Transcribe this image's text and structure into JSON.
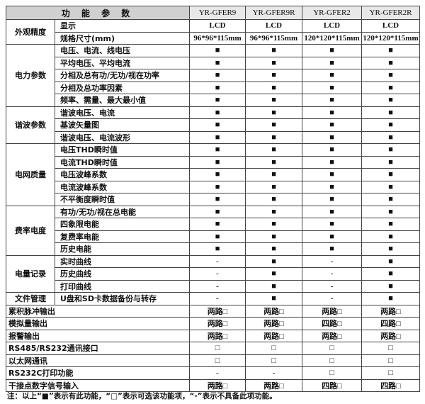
{
  "header": {
    "title": "功 能 参 数",
    "models": [
      "YR-GFER9",
      "YR-GFER9R",
      "YR-GFER2",
      "YR-GFER2R"
    ]
  },
  "groups": [
    {
      "name": "外观精度",
      "rows": [
        {
          "item": "显示",
          "values": [
            "LCD",
            "LCD",
            "LCD",
            "LCD"
          ]
        },
        {
          "item": "规格尺寸(mm)",
          "values": [
            "96*96*115mm",
            "96*96*115mm",
            "120*120*115mm",
            "120*120*115mm"
          ]
        }
      ]
    },
    {
      "name": "电力参数",
      "rows": [
        {
          "item": "电压、电流、线电压",
          "values": [
            "■",
            "■",
            "■",
            "■"
          ]
        },
        {
          "item": "平均电压、平均电流",
          "values": [
            "■",
            "■",
            "■",
            "■"
          ]
        },
        {
          "item": "分相及总有功/无功/视在功率",
          "values": [
            "■",
            "■",
            "■",
            "■"
          ]
        },
        {
          "item": "分相及总功率因素",
          "values": [
            "■",
            "■",
            "■",
            "■"
          ]
        },
        {
          "item": "频率、需量、最大最小值",
          "values": [
            "■",
            "■",
            "■",
            "■"
          ]
        }
      ]
    },
    {
      "name": "谐波参数",
      "rows": [
        {
          "item": "谐波电压、电流",
          "values": [
            "■",
            "■",
            "■",
            "■"
          ]
        },
        {
          "item": "基波矢量图",
          "values": [
            "■",
            "■",
            "■",
            "■"
          ]
        },
        {
          "item": "谐波电压、电流波形",
          "values": [
            "■",
            "■",
            "■",
            "■"
          ]
        }
      ]
    },
    {
      "name": "电网质量",
      "rows": [
        {
          "item": "电压THD瞬时值",
          "values": [
            "■",
            "■",
            "■",
            "■"
          ]
        },
        {
          "item": "电流THD瞬时值",
          "values": [
            "■",
            "■",
            "■",
            "■"
          ]
        },
        {
          "item": "电压波峰系数",
          "values": [
            "■",
            "■",
            "■",
            "■"
          ]
        },
        {
          "item": "电流波峰系数",
          "values": [
            "■",
            "■",
            "■",
            "■"
          ]
        },
        {
          "item": "不平衡度瞬时值",
          "values": [
            "■",
            "■",
            "■",
            "■"
          ]
        }
      ]
    },
    {
      "name": "费率电度",
      "rows": [
        {
          "item": "有功/无功/视在总电能",
          "values": [
            "■",
            "■",
            "■",
            "■"
          ]
        },
        {
          "item": "四象限电能",
          "values": [
            "■",
            "■",
            "■",
            "■"
          ]
        },
        {
          "item": "复费率电能",
          "values": [
            "■",
            "■",
            "■",
            "■"
          ]
        },
        {
          "item": "历史电能",
          "values": [
            "■",
            "■",
            "■",
            "■"
          ]
        }
      ]
    },
    {
      "name": "电量记录",
      "rows": [
        {
          "item": "实时曲线",
          "values": [
            "-",
            "■",
            "-",
            "■"
          ]
        },
        {
          "item": "历史曲线",
          "values": [
            "-",
            "■",
            "-",
            "■"
          ]
        },
        {
          "item": "打印曲线",
          "values": [
            "-",
            "■",
            "-",
            "■"
          ]
        }
      ]
    },
    {
      "name": "文件管理",
      "rows": [
        {
          "item": "U盘和SD卡数据备份与转存",
          "values": [
            "-",
            "■",
            "-",
            "■"
          ]
        }
      ]
    }
  ],
  "io_rows": [
    {
      "item": "累积脉冲输出",
      "values": [
        "两路□",
        "两路□",
        "两路□",
        "两路□"
      ]
    },
    {
      "item": "模拟量输出",
      "values": [
        "两路□",
        "两路□",
        "四路□",
        "四路□"
      ]
    },
    {
      "item": "报警输出",
      "values": [
        "两路□",
        "两路□",
        "两路□",
        "两路□"
      ]
    },
    {
      "item": "RS485/RS232通讯接口",
      "values": [
        "□",
        "□",
        "□",
        "□"
      ]
    },
    {
      "item": "以太网通讯",
      "values": [
        "□",
        "□",
        "□",
        "□"
      ]
    },
    {
      "item": "RS232C打印功能",
      "values": [
        "-",
        "-",
        "□",
        "□"
      ]
    },
    {
      "item": "干接点数字信号输入",
      "values": [
        "两路□",
        "两路□",
        "四路□",
        "四路□"
      ]
    }
  ],
  "note": "注：以上“■”表示有此功能，“□”表示可选该功能项，“-”表示不具备此项功能。"
}
